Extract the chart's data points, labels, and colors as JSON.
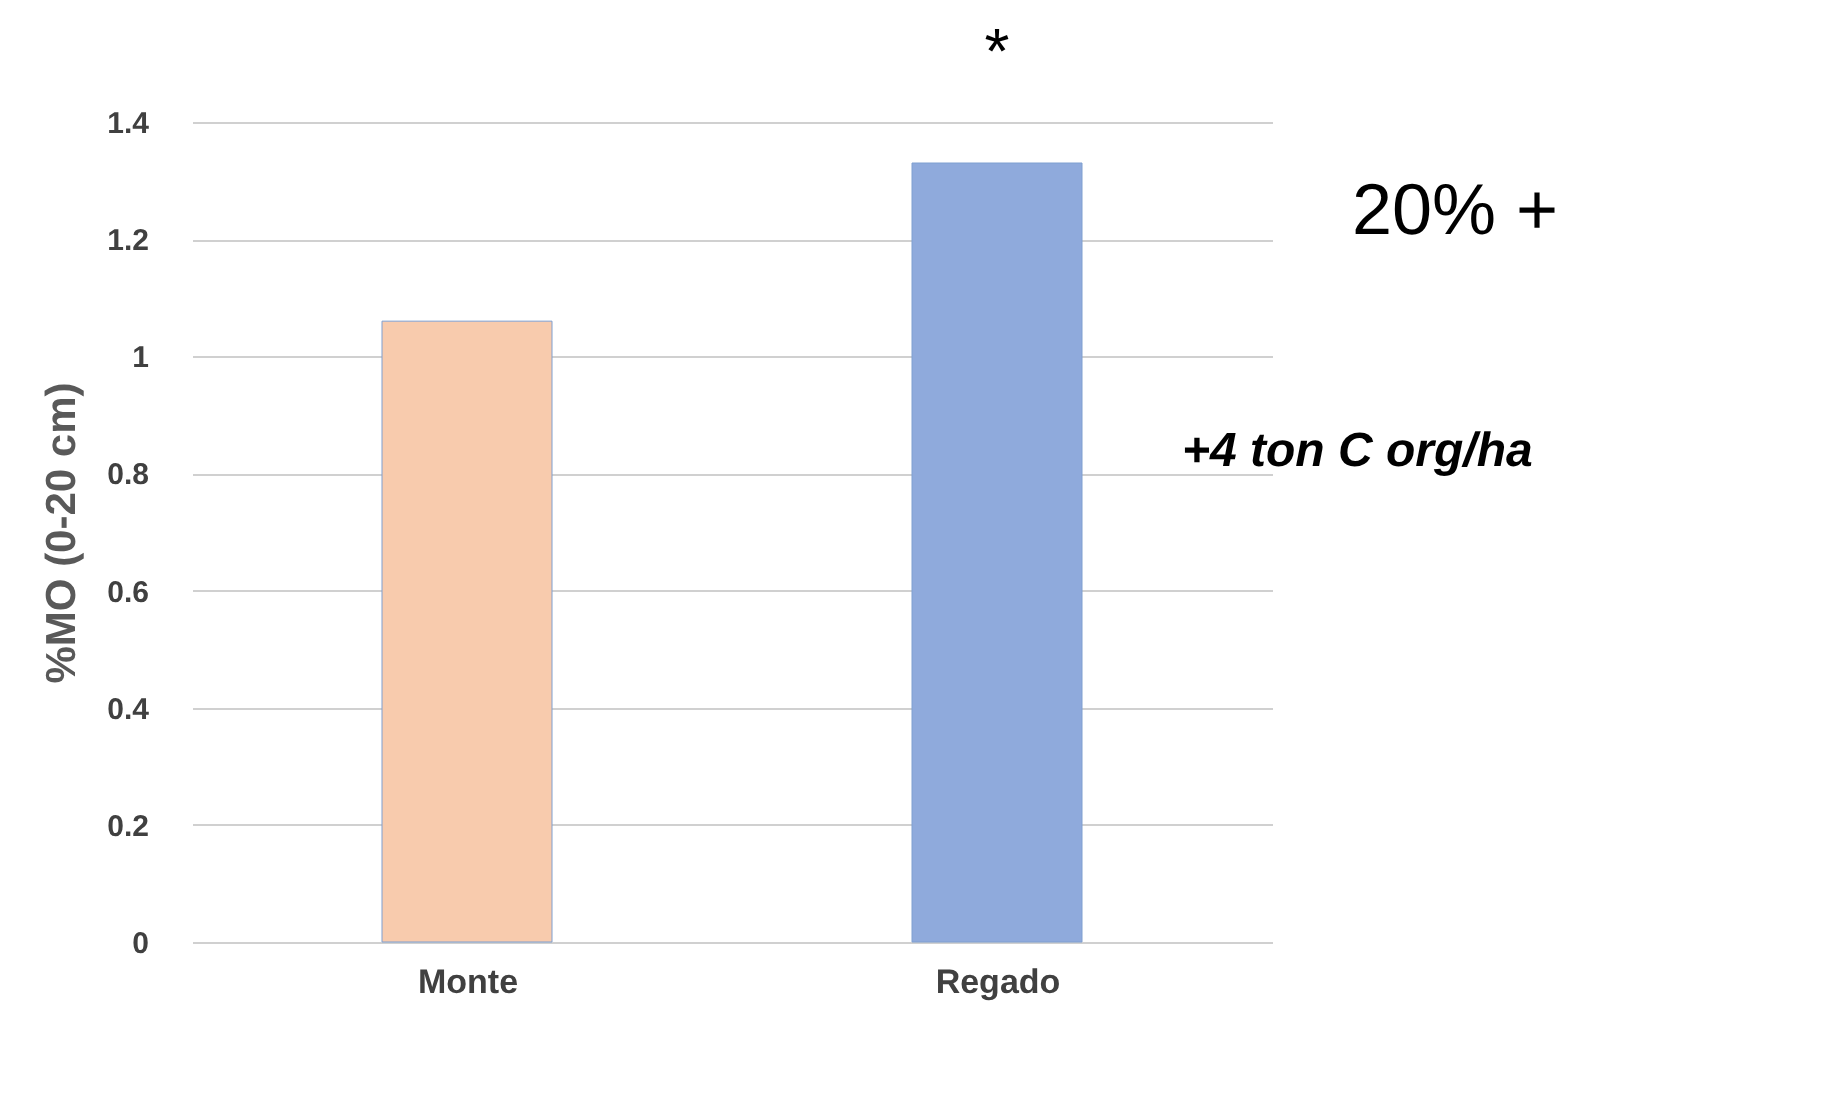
{
  "chart_data": {
    "type": "bar",
    "ylabel": "%MO (0-20 cm)",
    "categories": [
      "Monte",
      "Regado"
    ],
    "values": [
      1.06,
      1.33
    ],
    "colors": [
      "#f8cbad",
      "#8faadc"
    ],
    "ylim": [
      0,
      1.4
    ],
    "yticks": [
      0,
      {
        "value": 0.2,
        "label": "0.2"
      },
      {
        "value": 0.4,
        "label": "0.4"
      },
      {
        "value": 0.6,
        "label": "0.6"
      },
      {
        "value": 0.8,
        "label": "0.8"
      },
      1,
      {
        "value": 1.2,
        "label": "1.2"
      },
      {
        "value": 1.4,
        "label": "1.4"
      }
    ],
    "grid": "y",
    "annotations": [
      {
        "text": "*",
        "x": "Regado",
        "y": 1.33
      },
      "20% +",
      "+4 ton C org/ha"
    ]
  }
}
